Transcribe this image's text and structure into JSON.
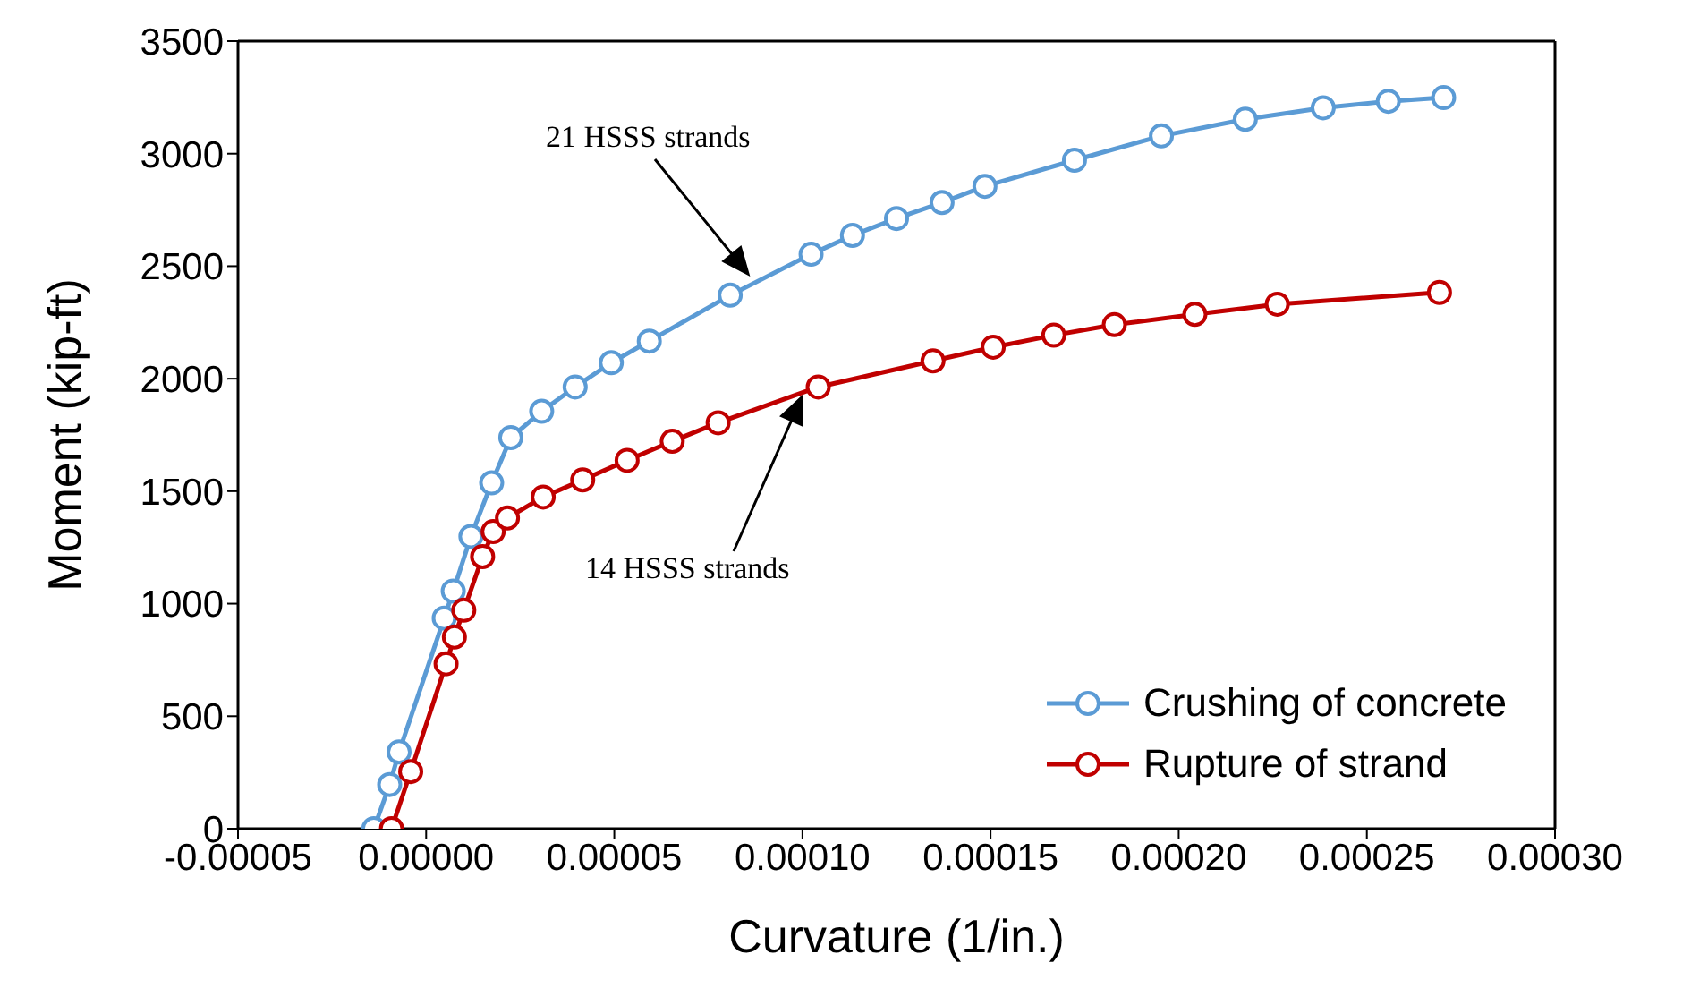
{
  "chart_data": {
    "type": "line",
    "xlabel": "Curvature (1/in.)",
    "ylabel": "Moment (kip-ft)",
    "xlim": [
      -5e-05,
      0.0003
    ],
    "xticks": [
      {
        "value": -5e-05,
        "label": "-0.00005"
      },
      {
        "value": 0,
        "label": "0.00000"
      },
      {
        "value": 5e-05,
        "label": "0.00005"
      },
      {
        "value": 0.0001,
        "label": "0.00010"
      },
      {
        "value": 0.00015,
        "label": "0.00015"
      },
      {
        "value": 0.0002,
        "label": "0.00020"
      },
      {
        "value": 0.00025,
        "label": "0.00025"
      },
      {
        "value": 0.0003,
        "label": "0.00030"
      }
    ],
    "ylim": [
      0,
      3500
    ],
    "yticks": [
      0,
      500,
      1000,
      1500,
      2000,
      2500,
      3000,
      3500
    ],
    "grid": false,
    "legend": "bottom right",
    "marker": "circle",
    "line_style": "solid",
    "series": [
      {
        "name": "Crushing of concrete",
        "color": "#5b9bd5",
        "x": [
          -1.39e-05,
          -9.7e-06,
          -7.2e-06,
          4.8e-06,
          7.2e-06,
          1.19e-05,
          1.74e-05,
          2.25e-05,
          3.07e-05,
          3.96e-05,
          4.92e-05,
          5.93e-05,
          8.08e-05,
          0.0001023,
          0.0001133,
          0.000125,
          0.0001371,
          0.0001485,
          0.0001723,
          0.0001954,
          0.0002177,
          0.0002384,
          0.0002557,
          0.0002704
        ],
        "values": [
          0,
          196,
          341,
          936,
          1056,
          1299,
          1537,
          1738,
          1855,
          1963,
          2071,
          2167,
          2371,
          2553,
          2637,
          2712,
          2783,
          2855,
          2971,
          3079,
          3153,
          3204,
          3233,
          3249
        ]
      },
      {
        "name": "Rupture of strand",
        "color": "#c00000",
        "x": [
          -9.2e-06,
          -4.1e-06,
          5.3e-06,
          7.5e-06,
          1e-05,
          1.5e-05,
          1.78e-05,
          2.16e-05,
          3.11e-05,
          4.16e-05,
          5.34e-05,
          6.54e-05,
          7.76e-05,
          0.0001042,
          0.0001347,
          0.0001507,
          0.0001668,
          0.0001829,
          0.0002043,
          0.0002262,
          0.0002693
        ],
        "values": [
          0,
          254,
          733,
          852,
          971,
          1209,
          1320,
          1381,
          1474,
          1550,
          1637,
          1722,
          1804,
          1963,
          2079,
          2140,
          2193,
          2240,
          2286,
          2331,
          2383
        ]
      }
    ],
    "annotations": [
      "21 HSSS strands",
      "14 HSSS strands"
    ]
  }
}
